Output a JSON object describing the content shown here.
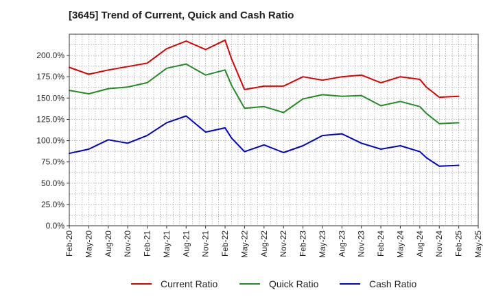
{
  "chart_data": {
    "type": "line",
    "title": "[3645]  Trend of Current, Quick and Cash Ratio",
    "xlabel": "",
    "ylabel": "",
    "ylim": [
      0,
      225
    ],
    "y_ticks": [
      0,
      25,
      50,
      75,
      100,
      125,
      150,
      175,
      200
    ],
    "y_tick_labels": [
      "0.0%",
      "25.0%",
      "50.0%",
      "75.0%",
      "100.0%",
      "125.0%",
      "150.0%",
      "175.0%",
      "200.0%"
    ],
    "x_ticks": [
      "Feb-20",
      "May-20",
      "Aug-20",
      "Nov-20",
      "Feb-21",
      "May-21",
      "Aug-21",
      "Nov-21",
      "Feb-22",
      "May-22",
      "Aug-22",
      "Nov-22",
      "Feb-23",
      "May-23",
      "Aug-23",
      "Nov-23",
      "Feb-24",
      "May-24",
      "Aug-24",
      "Nov-24",
      "Feb-25",
      "May-25"
    ],
    "grid": true,
    "legend_position": "bottom",
    "series": [
      {
        "name": "Current Ratio",
        "color": "#dd0000",
        "points": [
          {
            "x": 0,
            "y": 186
          },
          {
            "x": 3,
            "y": 178
          },
          {
            "x": 6,
            "y": 183
          },
          {
            "x": 9,
            "y": 187
          },
          {
            "x": 12,
            "y": 191
          },
          {
            "x": 15,
            "y": 208
          },
          {
            "x": 18,
            "y": 217
          },
          {
            "x": 21,
            "y": 207
          },
          {
            "x": 24,
            "y": 218
          },
          {
            "x": 25,
            "y": 196
          },
          {
            "x": 27,
            "y": 160
          },
          {
            "x": 30,
            "y": 164
          },
          {
            "x": 33,
            "y": 164
          },
          {
            "x": 36,
            "y": 175
          },
          {
            "x": 39,
            "y": 171
          },
          {
            "x": 42,
            "y": 175
          },
          {
            "x": 45,
            "y": 177
          },
          {
            "x": 48,
            "y": 168
          },
          {
            "x": 51,
            "y": 175
          },
          {
            "x": 54,
            "y": 172
          },
          {
            "x": 55,
            "y": 163
          },
          {
            "x": 57,
            "y": 151
          },
          {
            "x": 60,
            "y": 152
          }
        ]
      },
      {
        "name": "Quick Ratio",
        "color": "#228b22",
        "points": [
          {
            "x": 0,
            "y": 159
          },
          {
            "x": 3,
            "y": 155
          },
          {
            "x": 6,
            "y": 161
          },
          {
            "x": 9,
            "y": 163
          },
          {
            "x": 12,
            "y": 168
          },
          {
            "x": 15,
            "y": 185
          },
          {
            "x": 18,
            "y": 190
          },
          {
            "x": 21,
            "y": 177
          },
          {
            "x": 24,
            "y": 183
          },
          {
            "x": 25,
            "y": 165
          },
          {
            "x": 27,
            "y": 138
          },
          {
            "x": 30,
            "y": 140
          },
          {
            "x": 33,
            "y": 133
          },
          {
            "x": 36,
            "y": 149
          },
          {
            "x": 39,
            "y": 154
          },
          {
            "x": 42,
            "y": 152
          },
          {
            "x": 45,
            "y": 153
          },
          {
            "x": 48,
            "y": 141
          },
          {
            "x": 51,
            "y": 146
          },
          {
            "x": 54,
            "y": 140
          },
          {
            "x": 55,
            "y": 132
          },
          {
            "x": 57,
            "y": 120
          },
          {
            "x": 60,
            "y": 121
          }
        ]
      },
      {
        "name": "Cash Ratio",
        "color": "#0000cc",
        "points": [
          {
            "x": 0,
            "y": 85
          },
          {
            "x": 3,
            "y": 90
          },
          {
            "x": 6,
            "y": 101
          },
          {
            "x": 9,
            "y": 97
          },
          {
            "x": 12,
            "y": 106
          },
          {
            "x": 15,
            "y": 121
          },
          {
            "x": 18,
            "y": 129
          },
          {
            "x": 21,
            "y": 110
          },
          {
            "x": 24,
            "y": 115
          },
          {
            "x": 25,
            "y": 103
          },
          {
            "x": 27,
            "y": 87
          },
          {
            "x": 30,
            "y": 95
          },
          {
            "x": 33,
            "y": 86
          },
          {
            "x": 36,
            "y": 94
          },
          {
            "x": 39,
            "y": 106
          },
          {
            "x": 42,
            "y": 108
          },
          {
            "x": 45,
            "y": 97
          },
          {
            "x": 48,
            "y": 90
          },
          {
            "x": 51,
            "y": 94
          },
          {
            "x": 54,
            "y": 87
          },
          {
            "x": 55,
            "y": 80
          },
          {
            "x": 57,
            "y": 70
          },
          {
            "x": 60,
            "y": 71
          }
        ]
      }
    ]
  }
}
